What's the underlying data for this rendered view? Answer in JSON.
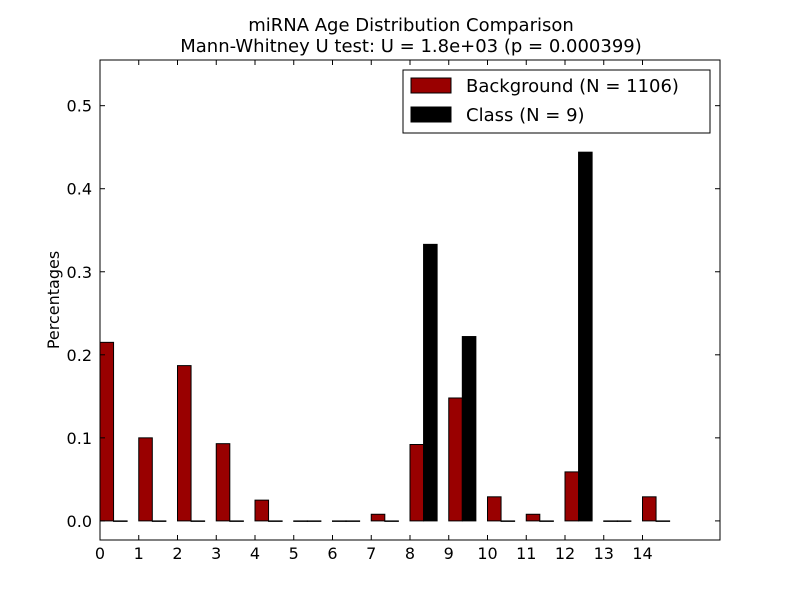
{
  "chart_data": {
    "type": "bar",
    "title": "miRNA Age Distribution Comparison",
    "subtitle": "Mann-Whitney U test: U = 1.8e+03 (p = 0.000399)",
    "xlabel": "",
    "ylabel": "Percentages",
    "xlim": [
      0,
      16
    ],
    "ylim": [
      -0.023,
      0.555
    ],
    "x_ticks": [
      "0",
      "1",
      "2",
      "3",
      "4",
      "5",
      "6",
      "7",
      "8",
      "9",
      "10",
      "11",
      "12",
      "13",
      "14"
    ],
    "y_ticks": [
      "0.0",
      "0.1",
      "0.2",
      "0.3",
      "0.4",
      "0.5"
    ],
    "categories": [
      0,
      1,
      2,
      3,
      4,
      5,
      6,
      7,
      8,
      9,
      10,
      11,
      12,
      13,
      14
    ],
    "series": [
      {
        "name": "Background (N = 1106)",
        "color": "#990000",
        "values": [
          0.215,
          0.1,
          0.187,
          0.093,
          0.025,
          0.0,
          0.0,
          0.008,
          0.092,
          0.148,
          0.029,
          0.008,
          0.059,
          0.0,
          0.029
        ]
      },
      {
        "name": "Class (N = 9)",
        "color": "#000000",
        "values": [
          0.0,
          0.0,
          0.0,
          0.0,
          0.0,
          0.0,
          0.0,
          0.0,
          0.333,
          0.222,
          0.0,
          0.0,
          0.444,
          0.0,
          0.0
        ]
      }
    ],
    "legend_position": "top-right",
    "grid": false
  }
}
